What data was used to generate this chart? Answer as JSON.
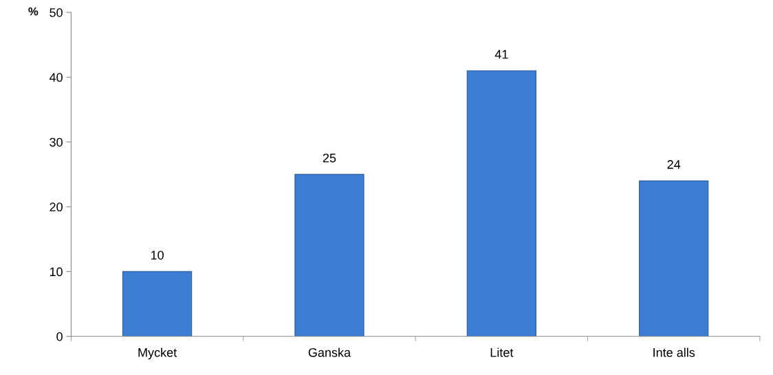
{
  "chart_data": {
    "type": "bar",
    "ylabel": "%",
    "categories": [
      "Mycket",
      "Ganska",
      "Litet",
      "Inte alls"
    ],
    "values": [
      10,
      25,
      41,
      24
    ],
    "color": "#3b7dd2",
    "ylim": [
      0,
      50
    ],
    "yticks": [
      0,
      10,
      20,
      30,
      40,
      50
    ],
    "grid": false,
    "data_labels": true
  }
}
